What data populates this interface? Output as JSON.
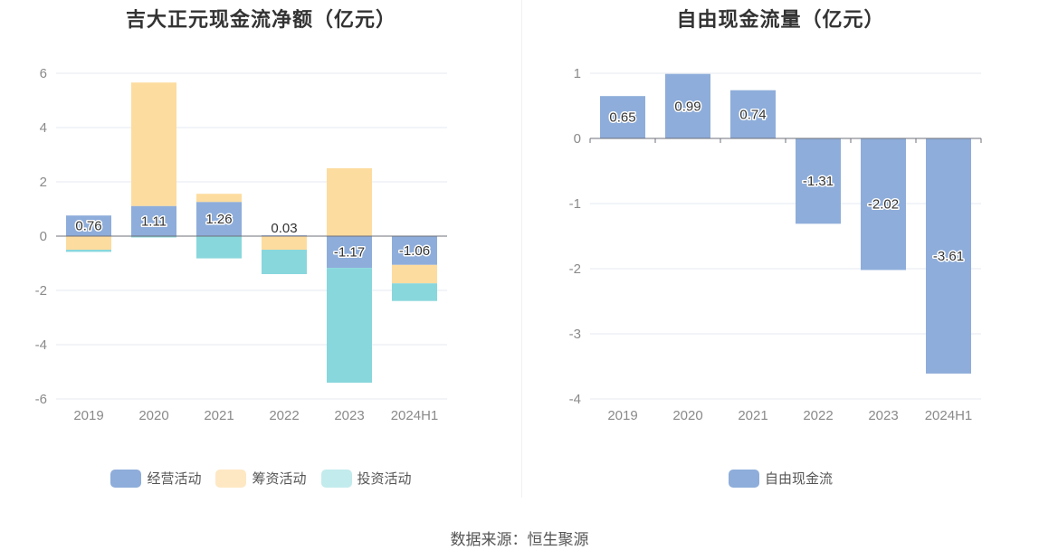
{
  "colors": {
    "operating": "#8eadda",
    "financing": "#fddc9f",
    "investing": "#88d7dc"
  },
  "source": "数据来源：恒生聚源",
  "chart_data": [
    {
      "type": "bar",
      "stacked": true,
      "title": "吉大正元现金流净额（亿元）",
      "categories": [
        "2019",
        "2020",
        "2021",
        "2022",
        "2023",
        "2024H1"
      ],
      "ylim": [
        -6,
        6
      ],
      "yticks": [
        6,
        4,
        2,
        0,
        -2,
        -4,
        -6
      ],
      "legend_position": "bottom",
      "series": [
        {
          "name": "经营活动",
          "key": "operating",
          "values": [
            0.76,
            1.11,
            1.26,
            0.03,
            -1.17,
            -1.06
          ],
          "labels": [
            "0.76",
            "1.11",
            "1.26",
            "0.03",
            "-1.17",
            "-1.06"
          ]
        },
        {
          "name": "筹资活动",
          "key": "financing",
          "values": [
            -0.5,
            4.55,
            0.3,
            -0.5,
            2.5,
            -0.68
          ],
          "labels": null
        },
        {
          "name": "投资活动",
          "key": "investing",
          "values": [
            -0.08,
            -0.05,
            -0.82,
            -0.9,
            -4.23,
            -0.65
          ],
          "labels": null
        }
      ]
    },
    {
      "type": "bar",
      "stacked": false,
      "title": "自由现金流量（亿元）",
      "categories": [
        "2019",
        "2020",
        "2021",
        "2022",
        "2023",
        "2024H1"
      ],
      "ylim": [
        -4,
        1
      ],
      "yticks": [
        1,
        0,
        -1,
        -2,
        -3,
        -4
      ],
      "legend_position": "bottom",
      "series": [
        {
          "name": "自由现金流",
          "key": "operating",
          "values": [
            0.65,
            0.99,
            0.74,
            -1.31,
            -2.02,
            -3.61
          ],
          "labels": [
            "0.65",
            "0.99",
            "0.74",
            "-1.31",
            "-2.02",
            "-3.61"
          ]
        }
      ]
    }
  ]
}
